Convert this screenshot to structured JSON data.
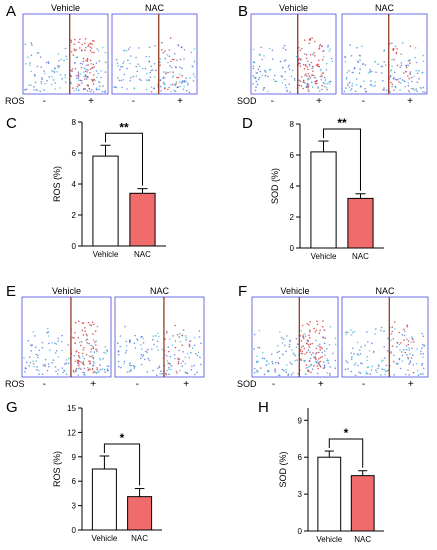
{
  "colors": {
    "vehicle_bar": "#ffffff",
    "nac_bar": "#f06b6b",
    "bar_stroke": "#000000",
    "facs_frame": "#4a4ae0",
    "facs_gate": "#8b2a10",
    "dot_blue": "#4a6fd6",
    "dot_cyan": "#38b8d8",
    "dot_red": "#d03838"
  },
  "facs_panels": [
    {
      "letter": "A",
      "marker": "ROS",
      "plots": [
        "Vehicle",
        "NAC"
      ]
    },
    {
      "letter": "B",
      "marker": "SOD",
      "plots": [
        "Vehicle",
        "NAC"
      ]
    },
    {
      "letter": "E",
      "marker": "ROS",
      "plots": [
        "Vehicle",
        "NAC"
      ]
    },
    {
      "letter": "F",
      "marker": "SOD",
      "plots": [
        "Vehicle",
        "NAC"
      ]
    }
  ],
  "sign_labels": {
    "negative": "-",
    "positive": "+"
  },
  "chart_data": [
    {
      "letter": "C",
      "type": "bar",
      "categories": [
        "Vehicle",
        "NAC"
      ],
      "values": [
        5.8,
        3.4
      ],
      "errors": [
        0.7,
        0.3
      ],
      "ylabel": "ROS (%)",
      "ylim": [
        0,
        8
      ],
      "yticks": [
        0,
        2,
        4,
        6,
        8
      ],
      "significance": "**"
    },
    {
      "letter": "D",
      "type": "bar",
      "categories": [
        "Vehicle",
        "NAC"
      ],
      "values": [
        6.2,
        3.2
      ],
      "errors": [
        0.7,
        0.3
      ],
      "ylabel": "SOD (%)",
      "ylim": [
        0,
        8
      ],
      "yticks": [
        0,
        2,
        4,
        6,
        8
      ],
      "significance": "**"
    },
    {
      "letter": "G",
      "type": "bar",
      "categories": [
        "Vehicle",
        "NAC"
      ],
      "values": [
        7.5,
        4.1
      ],
      "errors": [
        1.6,
        1.0
      ],
      "ylabel": "ROS (%)",
      "ylim": [
        0,
        15
      ],
      "yticks": [
        0,
        3,
        6,
        9,
        12,
        15
      ],
      "significance": "*"
    },
    {
      "letter": "H",
      "type": "bar",
      "categories": [
        "Vehicle",
        "NAC"
      ],
      "values": [
        6.0,
        4.5
      ],
      "errors": [
        0.5,
        0.4
      ],
      "ylabel": "SOD (%)",
      "ylim": [
        0,
        10
      ],
      "yticks": [
        0,
        3,
        6,
        9
      ],
      "significance": "*"
    }
  ]
}
